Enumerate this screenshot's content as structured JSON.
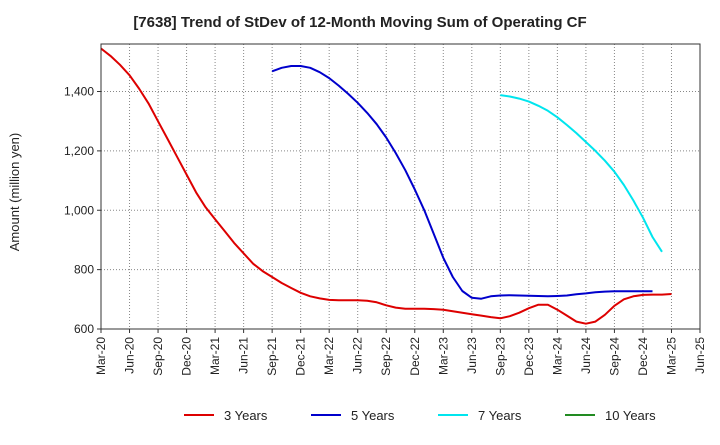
{
  "chart_data": {
    "type": "line",
    "title": "[7638]  Trend of StDev of 12-Month Moving Sum of Operating CF",
    "xlabel": "",
    "ylabel": "Amount (million yen)",
    "ylim": [
      600,
      1560
    ],
    "yticks": [
      600,
      800,
      1000,
      1200,
      1400
    ],
    "ytick_labels": [
      "600",
      "800",
      "1,000",
      "1,200",
      "1,400"
    ],
    "xticks": [
      "Mar-20",
      "Jun-20",
      "Sep-20",
      "Dec-20",
      "Mar-21",
      "Jun-21",
      "Sep-21",
      "Dec-21",
      "Mar-22",
      "Jun-22",
      "Sep-22",
      "Dec-22",
      "Mar-23",
      "Jun-23",
      "Sep-23",
      "Dec-23",
      "Mar-24",
      "Jun-24",
      "Sep-24",
      "Dec-24",
      "Mar-25",
      "Jun-25"
    ],
    "grid": true,
    "legend_position": "bottom",
    "series": [
      {
        "name": "3 Years",
        "color": "#dd0000",
        "start_index": 0,
        "values": [
          1545,
          1520,
          1490,
          1455,
          1410,
          1360,
          1300,
          1240,
          1180,
          1120,
          1060,
          1010,
          970,
          930,
          890,
          855,
          820,
          795,
          775,
          755,
          738,
          722,
          710,
          703,
          698,
          697,
          697,
          697,
          695,
          690,
          680,
          672,
          668,
          668,
          668,
          667,
          665,
          660,
          655,
          650,
          645,
          640,
          636,
          643,
          655,
          670,
          682,
          682,
          665,
          645,
          625,
          618,
          625,
          648,
          678,
          700,
          710,
          715,
          716,
          716,
          718
        ]
      },
      {
        "name": "5 Years",
        "color": "#0000cc",
        "start_index": 18,
        "values": [
          1468,
          1480,
          1486,
          1486,
          1480,
          1465,
          1445,
          1420,
          1392,
          1362,
          1328,
          1290,
          1245,
          1193,
          1135,
          1070,
          1000,
          920,
          840,
          775,
          728,
          705,
          702,
          710,
          713,
          714,
          713,
          712,
          711,
          710,
          711,
          713,
          717,
          720,
          724,
          726,
          727,
          727,
          727,
          727,
          727
        ]
      },
      {
        "name": "7 Years",
        "color": "#00e5ee",
        "start_index": 42,
        "values": [
          1388,
          1383,
          1376,
          1366,
          1352,
          1335,
          1313,
          1287,
          1260,
          1230,
          1200,
          1167,
          1130,
          1085,
          1033,
          975,
          910,
          860
        ]
      },
      {
        "name": "10 Years",
        "color": "#228b22",
        "start_index": 0,
        "values": []
      }
    ]
  }
}
